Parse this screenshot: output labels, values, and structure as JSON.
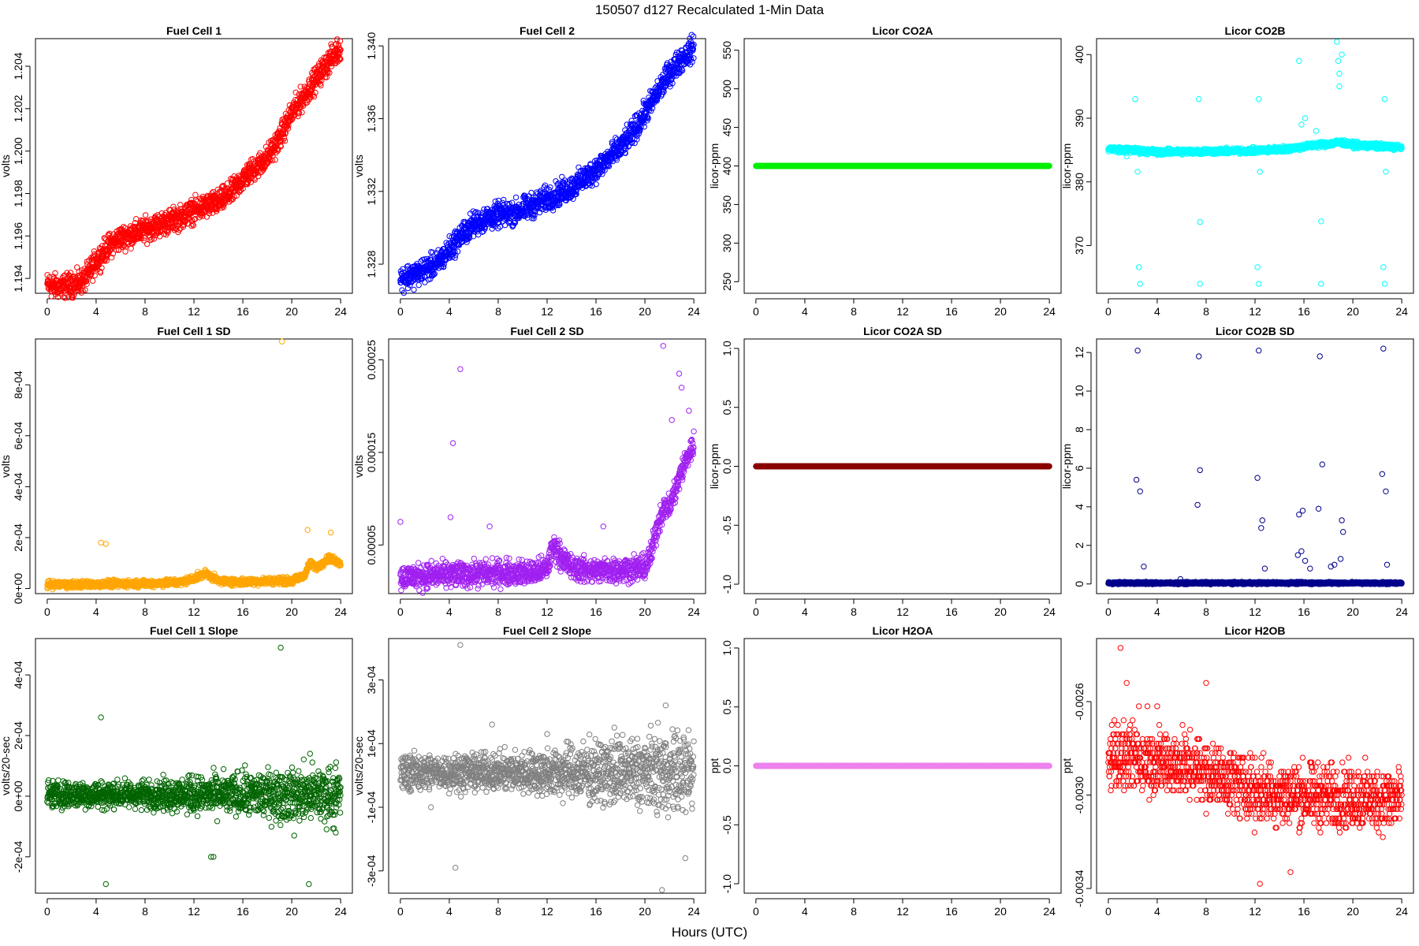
{
  "figure": {
    "title": "150507   d127   Recalculated 1-Min Data",
    "xlabel": "Hours (UTC)"
  },
  "chart_data": [
    {
      "id": "fc1",
      "type": "scatter",
      "title": "Fuel Cell 1",
      "ylabel": "volts",
      "color": "#ff0000",
      "xlim": [
        0,
        24
      ],
      "ylim": [
        1.1933,
        1.2053
      ],
      "xticks": [
        0,
        4,
        8,
        12,
        16,
        20,
        24
      ],
      "yticks": [
        1.194,
        1.196,
        1.198,
        1.2,
        1.202,
        1.204
      ],
      "ytick_labels": [
        "1.194",
        "1.196",
        "1.198",
        "1.200",
        "1.202",
        "1.204"
      ],
      "trend": {
        "x": [
          0,
          1,
          2,
          3,
          4,
          5,
          6,
          7,
          8,
          9,
          10,
          11,
          12,
          13,
          14,
          15,
          16,
          17,
          18,
          19,
          20,
          21,
          22,
          23,
          24
        ],
        "y": [
          1.1937,
          1.1936,
          1.1937,
          1.1939,
          1.1948,
          1.1955,
          1.1959,
          1.1961,
          1.1963,
          1.1965,
          1.1967,
          1.1969,
          1.1972,
          1.1974,
          1.1976,
          1.198,
          1.1987,
          1.1992,
          1.1997,
          1.2006,
          1.2018,
          1.2026,
          1.2034,
          1.2042,
          1.2049
        ]
      },
      "band": 0.0005,
      "outliers": []
    },
    {
      "id": "fc2",
      "type": "scatter",
      "title": "Fuel Cell 2",
      "ylabel": "volts",
      "color": "#0000ff",
      "xlim": [
        0,
        24
      ],
      "ylim": [
        1.3264,
        1.3404
      ],
      "xticks": [
        0,
        4,
        8,
        12,
        16,
        20,
        24
      ],
      "yticks": [
        1.328,
        1.332,
        1.336,
        1.34
      ],
      "ytick_labels": [
        "1.328",
        "1.332",
        "1.336",
        "1.340"
      ],
      "trend": {
        "x": [
          0,
          1,
          2,
          3,
          4,
          5,
          6,
          7,
          8,
          9,
          10,
          11,
          12,
          13,
          14,
          15,
          16,
          17,
          18,
          19,
          20,
          21,
          22,
          23,
          24
        ],
        "y": [
          1.3272,
          1.3274,
          1.3277,
          1.328,
          1.3288,
          1.3296,
          1.3302,
          1.3305,
          1.3307,
          1.3308,
          1.331,
          1.3313,
          1.3316,
          1.3319,
          1.3322,
          1.3327,
          1.3332,
          1.3338,
          1.3344,
          1.3352,
          1.3363,
          1.3374,
          1.3385,
          1.3393,
          1.3399
        ]
      },
      "band": 0.0006,
      "outliers": []
    },
    {
      "id": "co2a",
      "type": "scatter",
      "title": "Licor CO2A",
      "ylabel": "licor-ppm",
      "color": "#00ee00",
      "xlim": [
        0,
        24
      ],
      "ylim": [
        235,
        565
      ],
      "xticks": [
        0,
        4,
        8,
        12,
        16,
        20,
        24
      ],
      "yticks": [
        250,
        300,
        350,
        400,
        450,
        500,
        550
      ],
      "ytick_labels": [
        "250",
        "300",
        "350",
        "400",
        "450",
        "500",
        "550"
      ],
      "trend": {
        "x": [
          0,
          24
        ],
        "y": [
          400,
          400
        ]
      },
      "band": 0,
      "outliers": []
    },
    {
      "id": "co2b",
      "type": "scatter",
      "title": "Licor CO2B",
      "ylabel": "licor-ppm",
      "color": "#00ffff",
      "xlim": [
        0,
        24
      ],
      "ylim": [
        362.5,
        402.5
      ],
      "xticks": [
        0,
        4,
        8,
        12,
        16,
        20,
        24
      ],
      "yticks": [
        370,
        380,
        390,
        400
      ],
      "ytick_labels": [
        "370",
        "380",
        "390",
        "400"
      ],
      "trend": {
        "x": [
          0,
          4,
          8,
          12,
          14,
          15.5,
          17,
          18,
          19,
          20,
          24
        ],
        "y": [
          385.2,
          384.7,
          384.8,
          384.9,
          385.1,
          385.4,
          385.8,
          386,
          386.2,
          385.8,
          385.4
        ]
      },
      "band": 0.4,
      "outliers": [
        [
          2.2,
          393
        ],
        [
          2.4,
          381.6
        ],
        [
          2.5,
          366.6
        ],
        [
          2.6,
          364
        ],
        [
          7.4,
          393
        ],
        [
          7.5,
          373.7
        ],
        [
          7.5,
          364
        ],
        [
          12.3,
          393
        ],
        [
          12.4,
          381.6
        ],
        [
          12.2,
          366.6
        ],
        [
          12.3,
          364
        ],
        [
          15.6,
          399
        ],
        [
          15.8,
          389
        ],
        [
          16.1,
          390
        ],
        [
          17.0,
          388
        ],
        [
          17.4,
          373.8
        ],
        [
          17.4,
          364
        ],
        [
          18.7,
          402
        ],
        [
          18.8,
          399
        ],
        [
          18.9,
          397
        ],
        [
          18.9,
          395
        ],
        [
          19.1,
          400
        ],
        [
          22.6,
          393
        ],
        [
          22.7,
          381.6
        ],
        [
          22.5,
          366.6
        ],
        [
          22.6,
          364
        ],
        [
          1.5,
          384
        ],
        [
          4,
          384.2
        ]
      ]
    },
    {
      "id": "fc1sd",
      "type": "scatter",
      "title": "Fuel Cell 1 SD",
      "ylabel": "volts",
      "color": "#ffa500",
      "xlim": [
        0,
        24
      ],
      "ylim": [
        -2e-05,
        0.00098
      ],
      "xticks": [
        0,
        4,
        8,
        12,
        16,
        20,
        24
      ],
      "yticks": [
        0,
        0.0002,
        0.0004,
        0.0006,
        0.0008
      ],
      "ytick_labels": [
        "0e+00",
        "2e-04",
        "4e-04",
        "6e-04",
        "8e-04"
      ],
      "trend": {
        "x": [
          0,
          4,
          8,
          11,
          12,
          13,
          14,
          16,
          18,
          20,
          21,
          21.5,
          22,
          23,
          24
        ],
        "y": [
          1.5e-05,
          1.7e-05,
          2e-05,
          2.5e-05,
          4e-05,
          6e-05,
          3e-05,
          2.5e-05,
          3e-05,
          3e-05,
          5e-05,
          0.0001,
          8e-05,
          0.00012,
          0.0001
        ]
      },
      "band": 1.2e-05,
      "outliers": [
        [
          4.4,
          0.00018
        ],
        [
          4.8,
          0.000175
        ],
        [
          19.2,
          0.00097
        ],
        [
          21.3,
          0.00023
        ],
        [
          23.2,
          0.00022
        ]
      ]
    },
    {
      "id": "fc2sd",
      "type": "scatter",
      "title": "Fuel Cell 2 SD",
      "ylabel": "volts",
      "color": "#a020f0",
      "xlim": [
        0,
        24
      ],
      "ylim": [
        -2.5e-06,
        0.0002725
      ],
      "xticks": [
        0,
        4,
        8,
        12,
        16,
        20,
        24
      ],
      "yticks": [
        5e-05,
        0.00015,
        0.00025
      ],
      "ytick_labels": [
        "0.00005",
        "0.00015",
        "0.00025"
      ],
      "trend": {
        "x": [
          0,
          4,
          8,
          11,
          12,
          12.5,
          13,
          14,
          16,
          20,
          20.5,
          21,
          21.5,
          22,
          23,
          24
        ],
        "y": [
          1.5e-05,
          1.8e-05,
          2e-05,
          2e-05,
          2.5e-05,
          5e-05,
          4e-05,
          2.5e-05,
          2.2e-05,
          2.5e-05,
          4e-05,
          7e-05,
          9e-05,
          9e-05,
          0.00013,
          0.00016
        ]
      },
      "band": 1.2e-05,
      "outliers": [
        [
          0,
          7.5e-05
        ],
        [
          4.3,
          0.00016
        ],
        [
          4.9,
          0.00024
        ],
        [
          4.1,
          8e-05
        ],
        [
          21.5,
          0.000265
        ],
        [
          22.8,
          0.000235
        ],
        [
          23,
          0.00022
        ],
        [
          23.6,
          0.000195
        ],
        [
          22.2,
          0.000185
        ],
        [
          7.3,
          7e-05
        ],
        [
          16.6,
          7e-05
        ]
      ]
    },
    {
      "id": "co2asd",
      "type": "scatter",
      "title": "Licor CO2A SD",
      "ylabel": "licor-ppm",
      "color": "#8b0000",
      "xlim": [
        0,
        24
      ],
      "ylim": [
        -1.08,
        1.08
      ],
      "xticks": [
        0,
        4,
        8,
        12,
        16,
        20,
        24
      ],
      "yticks": [
        -1,
        -0.5,
        0,
        0.5,
        1
      ],
      "ytick_labels": [
        "-1.0",
        "-0.5",
        "0.0",
        "0.5",
        "1.0"
      ],
      "trend": {
        "x": [
          0,
          24
        ],
        "y": [
          0,
          0
        ]
      },
      "band": 0,
      "outliers": []
    },
    {
      "id": "co2bsd",
      "type": "scatter",
      "title": "Licor CO2B SD",
      "ylabel": "licor-ppm",
      "color": "#00008b",
      "xlim": [
        0,
        24
      ],
      "ylim": [
        -0.5,
        12.7
      ],
      "xticks": [
        0,
        4,
        8,
        12,
        16,
        20,
        24
      ],
      "yticks": [
        0,
        2,
        4,
        6,
        8,
        10,
        12
      ],
      "ytick_labels": [
        "0",
        "2",
        "4",
        "6",
        "8",
        "10",
        "12"
      ],
      "trend": {
        "x": [
          0,
          24
        ],
        "y": [
          0.05,
          0.05
        ]
      },
      "band": 0.05,
      "outliers": [
        [
          2.4,
          12.1
        ],
        [
          2.3,
          5.4
        ],
        [
          2.6,
          4.8
        ],
        [
          2.9,
          0.9
        ],
        [
          7.4,
          11.8
        ],
        [
          7.5,
          5.9
        ],
        [
          7.3,
          4.1
        ],
        [
          12.3,
          12.1
        ],
        [
          12.2,
          5.5
        ],
        [
          12.6,
          3.3
        ],
        [
          12.5,
          2.9
        ],
        [
          12.8,
          0.8
        ],
        [
          15.6,
          3.6
        ],
        [
          15.9,
          3.8
        ],
        [
          15.5,
          1.5
        ],
        [
          15.8,
          1.7
        ],
        [
          16.1,
          1.2
        ],
        [
          16.5,
          0.8
        ],
        [
          17.3,
          11.8
        ],
        [
          17.5,
          6.2
        ],
        [
          17.2,
          3.9
        ],
        [
          18.5,
          1.0
        ],
        [
          19.1,
          3.3
        ],
        [
          19.2,
          2.7
        ],
        [
          19.0,
          1.3
        ],
        [
          18.2,
          0.9
        ],
        [
          22.5,
          12.2
        ],
        [
          22.4,
          5.7
        ],
        [
          22.7,
          4.8
        ],
        [
          22.8,
          1.0
        ],
        [
          5.9,
          0.25
        ],
        [
          10,
          0.1
        ]
      ]
    },
    {
      "id": "fc1slope",
      "type": "scatter",
      "title": "Fuel Cell 1 Slope",
      "ylabel": "volts/20-sec",
      "color": "#006400",
      "xlim": [
        0,
        24
      ],
      "ylim": [
        -0.00032,
        0.00052
      ],
      "xticks": [
        0,
        4,
        8,
        12,
        16,
        20,
        24
      ],
      "yticks": [
        -0.0002,
        0,
        0.0002,
        0.0004
      ],
      "ytick_labels": [
        "-2e-04",
        "0e+00",
        "2e-04",
        "4e-04"
      ],
      "trend": {
        "x": [
          0,
          24
        ],
        "y": [
          5e-06,
          5e-06
        ]
      },
      "band": 4e-05,
      "bandGrowth": 2.2,
      "outliers": [
        [
          4.4,
          0.00026
        ],
        [
          4.8,
          -0.00029
        ],
        [
          19.1,
          0.00049
        ],
        [
          21.4,
          -0.00029
        ],
        [
          13.4,
          -0.0002
        ],
        [
          13.6,
          -0.0002
        ],
        [
          21.5,
          0.00014
        ],
        [
          20.2,
          -0.00013
        ],
        [
          23.6,
          -0.00012
        ]
      ]
    },
    {
      "id": "fc2slope",
      "type": "scatter",
      "title": "Fuel Cell 2 Slope",
      "ylabel": "volts/20-sec",
      "color": "#808080",
      "xlim": [
        0,
        24
      ],
      "ylim": [
        -0.00037,
        0.00043
      ],
      "xticks": [
        0,
        4,
        8,
        12,
        16,
        20,
        24
      ],
      "yticks": [
        -0.0003,
        -0.0001,
        0.0001,
        0.0003
      ],
      "ytick_labels": [
        "-3e-04",
        "-1e-04",
        "1e-04",
        "3e-04"
      ],
      "trend": {
        "x": [
          0,
          24
        ],
        "y": [
          1e-05,
          1e-05
        ]
      },
      "band": 5e-05,
      "bandGrowth": 2.4,
      "outliers": [
        [
          4.9,
          0.00041
        ],
        [
          4.5,
          -0.00029
        ],
        [
          7.5,
          0.00016
        ],
        [
          21.4,
          -0.00036
        ],
        [
          21.7,
          0.00022
        ],
        [
          23.3,
          -0.00026
        ],
        [
          2.5,
          -0.0001
        ],
        [
          0.2,
          -4e-05
        ],
        [
          12,
          0.00013
        ],
        [
          17.5,
          0.00015
        ]
      ]
    },
    {
      "id": "h2oa",
      "type": "scatter",
      "title": "Licor H2OA",
      "ylabel": "ppt",
      "color": "#ee82ee",
      "xlim": [
        0,
        24
      ],
      "ylim": [
        -1.08,
        1.08
      ],
      "xticks": [
        0,
        4,
        8,
        12,
        16,
        20,
        24
      ],
      "yticks": [
        -1,
        -0.5,
        0,
        0.5,
        1
      ],
      "ytick_labels": [
        "-1.0",
        "-0.5",
        "0.0",
        "0.5",
        "1.0"
      ],
      "trend": {
        "x": [
          0,
          24
        ],
        "y": [
          0,
          0
        ]
      },
      "band": 0,
      "outliers": []
    },
    {
      "id": "h2ob",
      "type": "scatter",
      "title": "Licor H2OB",
      "ylabel": "ppt",
      "color": "#ff0000",
      "xlim": [
        0,
        24
      ],
      "ylim": [
        -0.00342,
        -0.00233
      ],
      "xticks": [
        0,
        4,
        8,
        12,
        16,
        20,
        24
      ],
      "yticks": [
        -0.0026,
        -0.003,
        -0.0034
      ],
      "ytick_labels": [
        "-0.0026",
        "-0.0030",
        "-0.0034"
      ],
      "trend": {
        "x": [
          0,
          6,
          8,
          10,
          12,
          16,
          20,
          24
        ],
        "y": [
          -0.00283,
          -0.00287,
          -0.0029,
          -0.00294,
          -0.00298,
          -0.003,
          -0.00301,
          -0.00302
        ]
      },
      "band": 0.00012,
      "quantum": 2e-05,
      "outliers": [
        [
          1.0,
          -0.00237
        ],
        [
          1.5,
          -0.00252
        ],
        [
          8.0,
          -0.00252
        ],
        [
          12.4,
          -0.00338
        ],
        [
          14.9,
          -0.00333
        ],
        [
          0.5,
          -0.00268
        ],
        [
          2.5,
          -0.00262
        ],
        [
          3.2,
          -0.00262
        ],
        [
          4.0,
          -0.00262
        ]
      ]
    }
  ]
}
